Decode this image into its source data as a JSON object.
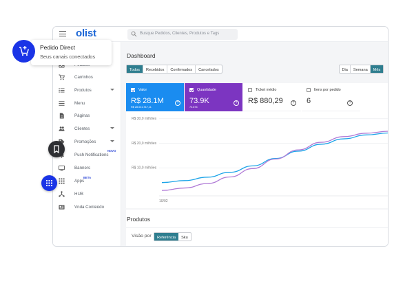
{
  "app": {
    "logo": "olist",
    "search_placeholder": "Busque Pedidos, Clientes, Produtos e Tags"
  },
  "promo": {
    "title": "Pedido Direct",
    "subtitle": "Seus canais conectados"
  },
  "sidebar": {
    "items": [
      {
        "label": "Pedidos",
        "icon": "inbox-icon"
      },
      {
        "label": "Carrinhos",
        "icon": "cart-icon"
      },
      {
        "label": "Produtos",
        "icon": "list-icon"
      },
      {
        "label": "Menu",
        "icon": "menu-icon"
      },
      {
        "label": "Páginas",
        "icon": "page-icon"
      },
      {
        "label": "Clientes",
        "icon": "people-icon"
      },
      {
        "label": "Promoções",
        "icon": "tag-icon"
      },
      {
        "label": "Push Notifications",
        "icon": "bell-icon"
      },
      {
        "label": "Banners",
        "icon": "banner-icon"
      },
      {
        "label": "Apps",
        "icon": "grid-icon"
      },
      {
        "label": "HUB",
        "icon": "hub-icon"
      },
      {
        "label": "Vnda Conteúdo",
        "icon": "content-icon"
      }
    ],
    "badge_novo": "NOVO",
    "badge_beta": "BETA"
  },
  "dashboard": {
    "title": "Dashboard",
    "status_tabs": [
      "Todos",
      "Recebidos",
      "Confirmados",
      "Cancelados"
    ],
    "period_tabs": [
      "Dia",
      "Semana",
      "Mês"
    ],
    "cards": [
      {
        "label": "Valor",
        "value": "R$ 28.1M",
        "sub": "R$ 28.041.917,11",
        "color": "#1a8cf0"
      },
      {
        "label": "Quantidade",
        "value": "73.9K",
        "sub": "73.876",
        "color": "#7c35c1"
      },
      {
        "label": "Ticket médio",
        "value": "R$ 880,29"
      },
      {
        "label": "Itens por pedido",
        "value": "6"
      }
    ]
  },
  "chart_data": {
    "type": "line",
    "title": "",
    "y_tick_labels": [
      "R$ 30,0 milhões",
      "R$ 20,0 milhões",
      "R$ 10,0 milhões"
    ],
    "y_ticks": [
      30,
      20,
      10
    ],
    "ylim": [
      0,
      33
    ],
    "x_tick_labels": [
      "10/02"
    ],
    "series": [
      {
        "name": "Valor",
        "color": "#1aa3e8",
        "x": [
          0,
          0.1,
          0.2,
          0.3,
          0.4,
          0.5,
          0.6,
          0.7,
          0.8,
          0.9,
          1.0
        ],
        "values": [
          4,
          4.8,
          6.2,
          8.2,
          10.8,
          13.8,
          16.8,
          19.6,
          21.8,
          23.4,
          24.2
        ]
      },
      {
        "name": "Quantidade",
        "color": "#b07ad6",
        "x": [
          0,
          0.1,
          0.2,
          0.3,
          0.4,
          0.5,
          0.6,
          0.7,
          0.8,
          0.9,
          1.0
        ],
        "values": [
          0.8,
          1.8,
          3.6,
          6.3,
          9.7,
          13.6,
          17.3,
          20.4,
          22.7,
          24.1,
          24.9
        ]
      }
    ]
  },
  "products": {
    "title": "Produtos",
    "view_label": "Visão por",
    "view_tabs": [
      "Referência",
      "Sku"
    ]
  },
  "colors": {
    "accent": "#2f7e8f",
    "brand": "#1b66d6",
    "fab_blue": "#1a34e6"
  }
}
